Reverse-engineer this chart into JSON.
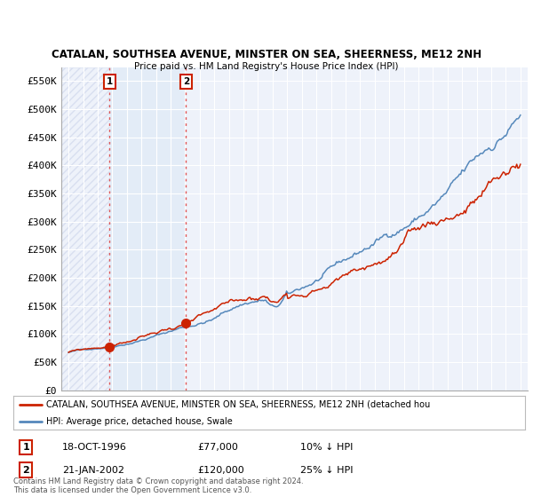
{
  "title": "CATALAN, SOUTHSEA AVENUE, MINSTER ON SEA, SHEERNESS, ME12 2NH",
  "subtitle": "Price paid vs. HM Land Registry's House Price Index (HPI)",
  "ylim": [
    0,
    575000
  ],
  "xlim": [
    1993.5,
    2025.5
  ],
  "yticks": [
    0,
    50000,
    100000,
    150000,
    200000,
    250000,
    300000,
    350000,
    400000,
    450000,
    500000,
    550000
  ],
  "ytick_labels": [
    "£0",
    "£50K",
    "£100K",
    "£150K",
    "£200K",
    "£250K",
    "£300K",
    "£350K",
    "£400K",
    "£450K",
    "£500K",
    "£550K"
  ],
  "xticks": [
    1994,
    1995,
    1996,
    1997,
    1998,
    1999,
    2000,
    2001,
    2002,
    2003,
    2004,
    2005,
    2006,
    2007,
    2008,
    2009,
    2010,
    2011,
    2012,
    2013,
    2014,
    2015,
    2016,
    2017,
    2018,
    2019,
    2020,
    2021,
    2022,
    2023,
    2024,
    2025
  ],
  "bg_color": "#eef2fa",
  "hatch_color": "#d8dff0",
  "grid_color": "#ffffff",
  "hpi_color": "#5588bb",
  "price_color": "#cc2200",
  "shade_color": "#dde8f5",
  "marker1_x": 1996.8,
  "marker1_y": 77000,
  "marker2_x": 2002.05,
  "marker2_y": 120000,
  "marker1_label": "1",
  "marker2_label": "2",
  "marker1_date": "18-OCT-1996",
  "marker1_price": "£77,000",
  "marker1_hpi": "10% ↓ HPI",
  "marker2_date": "21-JAN-2002",
  "marker2_price": "£120,000",
  "marker2_hpi": "25% ↓ HPI",
  "legend_price_label": "CATALAN, SOUTHSEA AVENUE, MINSTER ON SEA, SHEERNESS, ME12 2NH (detached hou",
  "legend_hpi_label": "HPI: Average price, detached house, Swale",
  "footer": "Contains HM Land Registry data © Crown copyright and database right 2024.\nThis data is licensed under the Open Government Licence v3.0."
}
